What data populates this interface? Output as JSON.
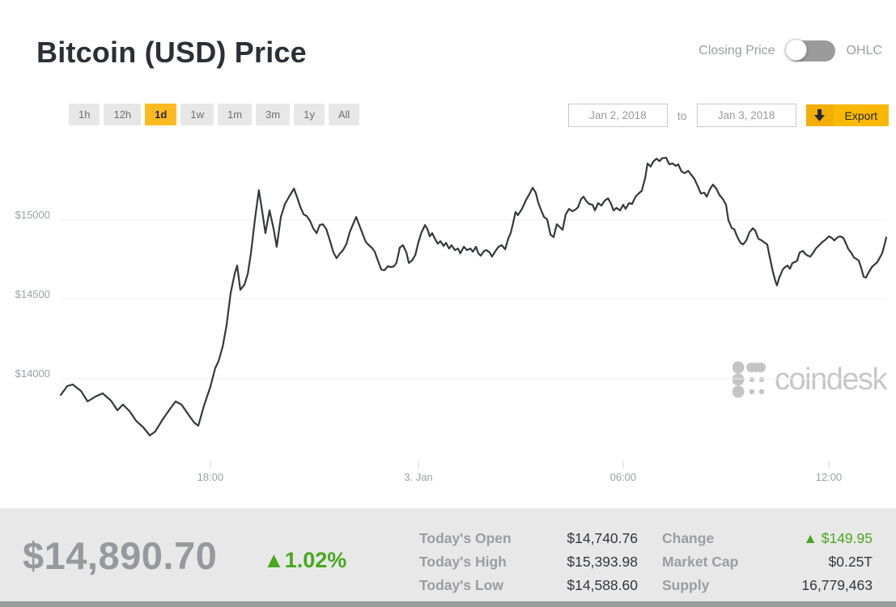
{
  "header": {
    "title": "Bitcoin (USD) Price",
    "toggle": {
      "left_label": "Closing Price",
      "right_label": "OHLC",
      "selected": "Closing Price"
    }
  },
  "controls": {
    "ranges": [
      {
        "label": "1h",
        "active": false
      },
      {
        "label": "12h",
        "active": false
      },
      {
        "label": "1d",
        "active": true
      },
      {
        "label": "1w",
        "active": false
      },
      {
        "label": "1m",
        "active": false
      },
      {
        "label": "3m",
        "active": false
      },
      {
        "label": "1y",
        "active": false
      },
      {
        "label": "All",
        "active": false
      }
    ],
    "date_from": "Jan 2, 2018",
    "to_label": "to",
    "date_to": "Jan 3, 2018",
    "export_label": "Export",
    "export_icon": "down-arrow"
  },
  "chart_data": {
    "type": "line",
    "title": "Bitcoin (USD) Price",
    "xlabel": "",
    "ylabel": "",
    "grid": true,
    "legend_position": "none",
    "watermark": "coindesk",
    "y_ticks": [
      "$15000",
      "$14500",
      "$14000"
    ],
    "y_tick_values": [
      15000,
      14500,
      14000
    ],
    "x_ticks": [
      "18:00",
      "3. Jan",
      "06:00",
      "12:00"
    ],
    "x_tick_hours": [
      4.35,
      10.4,
      16.35,
      22.33
    ],
    "x_unit": "hours since window start (Jan 2 ~13:40 to Jan 3 ~13:40)",
    "ylim": [
      13550,
      15500
    ],
    "xlim_hours": [
      0,
      24
    ],
    "line_color": "#35383d",
    "series": [
      {
        "name": "Bitcoin (USD) closing price",
        "points": [
          [
            0,
            13898
          ],
          [
            0.19,
            13954
          ],
          [
            0.35,
            13964
          ],
          [
            0.59,
            13923
          ],
          [
            0.78,
            13857
          ],
          [
            1.01,
            13888
          ],
          [
            1.22,
            13908
          ],
          [
            1.46,
            13862
          ],
          [
            1.65,
            13801
          ],
          [
            1.81,
            13837
          ],
          [
            2.0,
            13796
          ],
          [
            2.19,
            13735
          ],
          [
            2.4,
            13694
          ],
          [
            2.59,
            13643
          ],
          [
            2.75,
            13668
          ],
          [
            2.94,
            13735
          ],
          [
            3.18,
            13811
          ],
          [
            3.34,
            13857
          ],
          [
            3.51,
            13837
          ],
          [
            3.69,
            13781
          ],
          [
            3.88,
            13724
          ],
          [
            4.0,
            13704
          ],
          [
            4.16,
            13827
          ],
          [
            4.35,
            13949
          ],
          [
            4.49,
            14066
          ],
          [
            4.59,
            14112
          ],
          [
            4.71,
            14204
          ],
          [
            4.82,
            14337
          ],
          [
            4.94,
            14541
          ],
          [
            5.06,
            14663
          ],
          [
            5.13,
            14714
          ],
          [
            5.22,
            14561
          ],
          [
            5.34,
            14592
          ],
          [
            5.44,
            14663
          ],
          [
            5.53,
            14791
          ],
          [
            5.65,
            15010
          ],
          [
            5.76,
            15189
          ],
          [
            5.86,
            15051
          ],
          [
            5.95,
            14918
          ],
          [
            6.07,
            15061
          ],
          [
            6.19,
            14944
          ],
          [
            6.28,
            14832
          ],
          [
            6.4,
            15020
          ],
          [
            6.52,
            15102
          ],
          [
            6.64,
            15148
          ],
          [
            6.78,
            15199
          ],
          [
            6.89,
            15133
          ],
          [
            6.96,
            15087
          ],
          [
            7.06,
            15036
          ],
          [
            7.15,
            15026
          ],
          [
            7.25,
            14995
          ],
          [
            7.34,
            14949
          ],
          [
            7.44,
            14918
          ],
          [
            7.53,
            14969
          ],
          [
            7.62,
            14974
          ],
          [
            7.72,
            14944
          ],
          [
            7.81,
            14883
          ],
          [
            7.93,
            14796
          ],
          [
            8.02,
            14760
          ],
          [
            8.12,
            14791
          ],
          [
            8.21,
            14811
          ],
          [
            8.31,
            14852
          ],
          [
            8.4,
            14923
          ],
          [
            8.52,
            14985
          ],
          [
            8.59,
            15020
          ],
          [
            8.68,
            14969
          ],
          [
            8.78,
            14913
          ],
          [
            8.87,
            14862
          ],
          [
            8.94,
            14847
          ],
          [
            9.04,
            14827
          ],
          [
            9.13,
            14801
          ],
          [
            9.22,
            14745
          ],
          [
            9.32,
            14689
          ],
          [
            9.41,
            14684
          ],
          [
            9.51,
            14709
          ],
          [
            9.6,
            14704
          ],
          [
            9.69,
            14709
          ],
          [
            9.76,
            14730
          ],
          [
            9.86,
            14827
          ],
          [
            9.95,
            14842
          ],
          [
            10.05,
            14796
          ],
          [
            10.12,
            14730
          ],
          [
            10.21,
            14745
          ],
          [
            10.31,
            14781
          ],
          [
            10.4,
            14862
          ],
          [
            10.49,
            14923
          ],
          [
            10.59,
            14969
          ],
          [
            10.66,
            14944
          ],
          [
            10.73,
            14898
          ],
          [
            10.8,
            14918
          ],
          [
            10.89,
            14878
          ],
          [
            10.96,
            14852
          ],
          [
            11.04,
            14867
          ],
          [
            11.13,
            14837
          ],
          [
            11.2,
            14857
          ],
          [
            11.29,
            14821
          ],
          [
            11.36,
            14842
          ],
          [
            11.46,
            14811
          ],
          [
            11.55,
            14821
          ],
          [
            11.62,
            14791
          ],
          [
            11.72,
            14832
          ],
          [
            11.81,
            14811
          ],
          [
            11.91,
            14821
          ],
          [
            11.98,
            14801
          ],
          [
            12.07,
            14832
          ],
          [
            12.14,
            14791
          ],
          [
            12.21,
            14776
          ],
          [
            12.31,
            14806
          ],
          [
            12.38,
            14811
          ],
          [
            12.47,
            14796
          ],
          [
            12.54,
            14770
          ],
          [
            12.64,
            14806
          ],
          [
            12.73,
            14832
          ],
          [
            12.82,
            14842
          ],
          [
            12.92,
            14816
          ],
          [
            13.01,
            14883
          ],
          [
            13.08,
            14918
          ],
          [
            13.15,
            14980
          ],
          [
            13.22,
            15051
          ],
          [
            13.29,
            15031
          ],
          [
            13.41,
            15071
          ],
          [
            13.53,
            15128
          ],
          [
            13.62,
            15163
          ],
          [
            13.72,
            15204
          ],
          [
            13.81,
            15173
          ],
          [
            13.88,
            15112
          ],
          [
            13.95,
            15071
          ],
          [
            14.05,
            15020
          ],
          [
            14.14,
            15005
          ],
          [
            14.24,
            14908
          ],
          [
            14.33,
            14893
          ],
          [
            14.42,
            14974
          ],
          [
            14.52,
            14954
          ],
          [
            14.59,
            14939
          ],
          [
            14.68,
            15036
          ],
          [
            14.78,
            15071
          ],
          [
            14.87,
            15056
          ],
          [
            14.96,
            15066
          ],
          [
            15.04,
            15082
          ],
          [
            15.13,
            15133
          ],
          [
            15.2,
            15148
          ],
          [
            15.27,
            15122
          ],
          [
            15.36,
            15102
          ],
          [
            15.46,
            15097
          ],
          [
            15.53,
            15061
          ],
          [
            15.62,
            15107
          ],
          [
            15.72,
            15092
          ],
          [
            15.81,
            15122
          ],
          [
            15.91,
            15138
          ],
          [
            16.0,
            15102
          ],
          [
            16.07,
            15061
          ],
          [
            16.16,
            15077
          ],
          [
            16.26,
            15061
          ],
          [
            16.35,
            15097
          ],
          [
            16.42,
            15071
          ],
          [
            16.52,
            15107
          ],
          [
            16.61,
            15102
          ],
          [
            16.71,
            15148
          ],
          [
            16.8,
            15168
          ],
          [
            16.89,
            15184
          ],
          [
            16.99,
            15265
          ],
          [
            17.06,
            15357
          ],
          [
            17.15,
            15337
          ],
          [
            17.22,
            15367
          ],
          [
            17.32,
            15388
          ],
          [
            17.41,
            15372
          ],
          [
            17.48,
            15390
          ],
          [
            17.6,
            15394
          ],
          [
            17.69,
            15352
          ],
          [
            17.79,
            15357
          ],
          [
            17.88,
            15342
          ],
          [
            17.95,
            15352
          ],
          [
            18.05,
            15306
          ],
          [
            18.14,
            15296
          ],
          [
            18.24,
            15311
          ],
          [
            18.33,
            15286
          ],
          [
            18.42,
            15260
          ],
          [
            18.52,
            15214
          ],
          [
            18.61,
            15168
          ],
          [
            18.71,
            15173
          ],
          [
            18.78,
            15148
          ],
          [
            18.87,
            15194
          ],
          [
            18.96,
            15224
          ],
          [
            19.06,
            15199
          ],
          [
            19.15,
            15158
          ],
          [
            19.25,
            15133
          ],
          [
            19.34,
            15097
          ],
          [
            19.41,
            15000
          ],
          [
            19.51,
            14949
          ],
          [
            19.58,
            14944
          ],
          [
            19.67,
            14893
          ],
          [
            19.76,
            14857
          ],
          [
            19.84,
            14847
          ],
          [
            19.93,
            14872
          ],
          [
            20.02,
            14923
          ],
          [
            20.12,
            14949
          ],
          [
            20.19,
            14934
          ],
          [
            20.28,
            14883
          ],
          [
            20.38,
            14872
          ],
          [
            20.47,
            14857
          ],
          [
            20.54,
            14847
          ],
          [
            20.61,
            14770
          ],
          [
            20.71,
            14668
          ],
          [
            20.78,
            14612
          ],
          [
            20.82,
            14589
          ],
          [
            20.89,
            14638
          ],
          [
            20.99,
            14689
          ],
          [
            21.06,
            14704
          ],
          [
            21.13,
            14714
          ],
          [
            21.2,
            14694
          ],
          [
            21.27,
            14730
          ],
          [
            21.34,
            14735
          ],
          [
            21.41,
            14745
          ],
          [
            21.48,
            14796
          ],
          [
            21.58,
            14806
          ],
          [
            21.65,
            14786
          ],
          [
            21.72,
            14776
          ],
          [
            21.79,
            14770
          ],
          [
            21.88,
            14796
          ],
          [
            21.95,
            14821
          ],
          [
            22.05,
            14842
          ],
          [
            22.14,
            14862
          ],
          [
            22.24,
            14878
          ],
          [
            22.33,
            14898
          ],
          [
            22.42,
            14888
          ],
          [
            22.49,
            14872
          ],
          [
            22.59,
            14893
          ],
          [
            22.66,
            14898
          ],
          [
            22.75,
            14888
          ],
          [
            22.82,
            14857
          ],
          [
            22.89,
            14821
          ],
          [
            22.99,
            14791
          ],
          [
            23.06,
            14765
          ],
          [
            23.13,
            14755
          ],
          [
            23.2,
            14745
          ],
          [
            23.27,
            14699
          ],
          [
            23.34,
            14643
          ],
          [
            23.41,
            14638
          ],
          [
            23.48,
            14668
          ],
          [
            23.58,
            14704
          ],
          [
            23.65,
            14719
          ],
          [
            23.72,
            14730
          ],
          [
            23.79,
            14755
          ],
          [
            23.88,
            14791
          ],
          [
            23.95,
            14847
          ],
          [
            24.0,
            14891
          ]
        ]
      }
    ]
  },
  "stats_bar": {
    "price": "$14,890.70",
    "change_pct": "▲1.02%",
    "left_stats": [
      {
        "label": "Today's Open",
        "value": "$14,740.76"
      },
      {
        "label": "Today's High",
        "value": "$15,393.98"
      },
      {
        "label": "Today's Low",
        "value": "$14,588.60"
      }
    ],
    "right_stats": [
      {
        "label": "Change",
        "value": "▲ $149.95",
        "positive": true
      },
      {
        "label": "Market Cap",
        "value": "$0.25T"
      },
      {
        "label": "Supply",
        "value": "16,779,463"
      }
    ]
  },
  "colors": {
    "accent_gold": "#fcb920",
    "positive_green": "#48a81e",
    "line": "#35383d",
    "grid": "#efefef",
    "axis_text": "#9aa0a8",
    "stats_bg": "#e8e8e8"
  }
}
